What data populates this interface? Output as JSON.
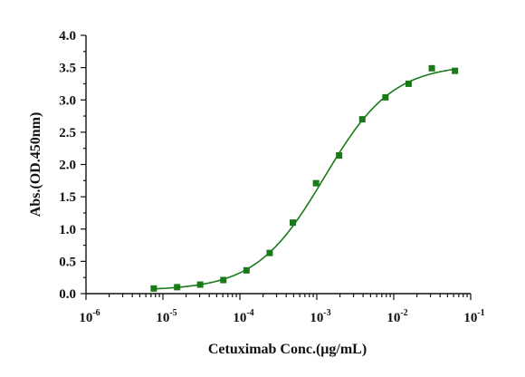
{
  "chart_data": {
    "type": "scatter",
    "xlabel": "Cetuximab Conc.(μg/mL)",
    "ylabel": "Abs.(OD.450nm)",
    "x_scale": "log",
    "xlim": [
      1e-06,
      0.1
    ],
    "ylim": [
      0,
      4
    ],
    "x_ticks": [
      {
        "value": 1e-06,
        "base": "10",
        "exp": "-6"
      },
      {
        "value": 1e-05,
        "base": "10",
        "exp": "-5"
      },
      {
        "value": 0.0001,
        "base": "10",
        "exp": "-4"
      },
      {
        "value": 0.001,
        "base": "10",
        "exp": "-3"
      },
      {
        "value": 0.01,
        "base": "10",
        "exp": "-2"
      },
      {
        "value": 0.1,
        "base": "10",
        "exp": "-1"
      }
    ],
    "y_ticks": [
      {
        "value": 0,
        "label": "0.0"
      },
      {
        "value": 0.5,
        "label": "0.5"
      },
      {
        "value": 1,
        "label": "1.0"
      },
      {
        "value": 1.5,
        "label": "1.5"
      },
      {
        "value": 2,
        "label": "2.0"
      },
      {
        "value": 2.5,
        "label": "2.5"
      },
      {
        "value": 3,
        "label": "3.0"
      },
      {
        "value": 3.5,
        "label": "3.5"
      },
      {
        "value": 4,
        "label": "4.0"
      }
    ],
    "grid": false,
    "legend": "none",
    "series": [
      {
        "color": "#1a7a1a",
        "marker": "square",
        "fit": "four-parameter logistic curve",
        "x": [
          7.6e-06,
          1.53e-05,
          3.05e-05,
          6.1e-05,
          0.000122,
          0.000244,
          0.000488,
          0.000977,
          0.00195,
          0.0039,
          0.0078,
          0.0156,
          0.03125,
          0.0625
        ],
        "y": [
          0.08,
          0.1,
          0.14,
          0.21,
          0.36,
          0.63,
          1.1,
          1.71,
          2.14,
          2.7,
          3.04,
          3.25,
          3.49,
          3.45
        ]
      }
    ]
  }
}
